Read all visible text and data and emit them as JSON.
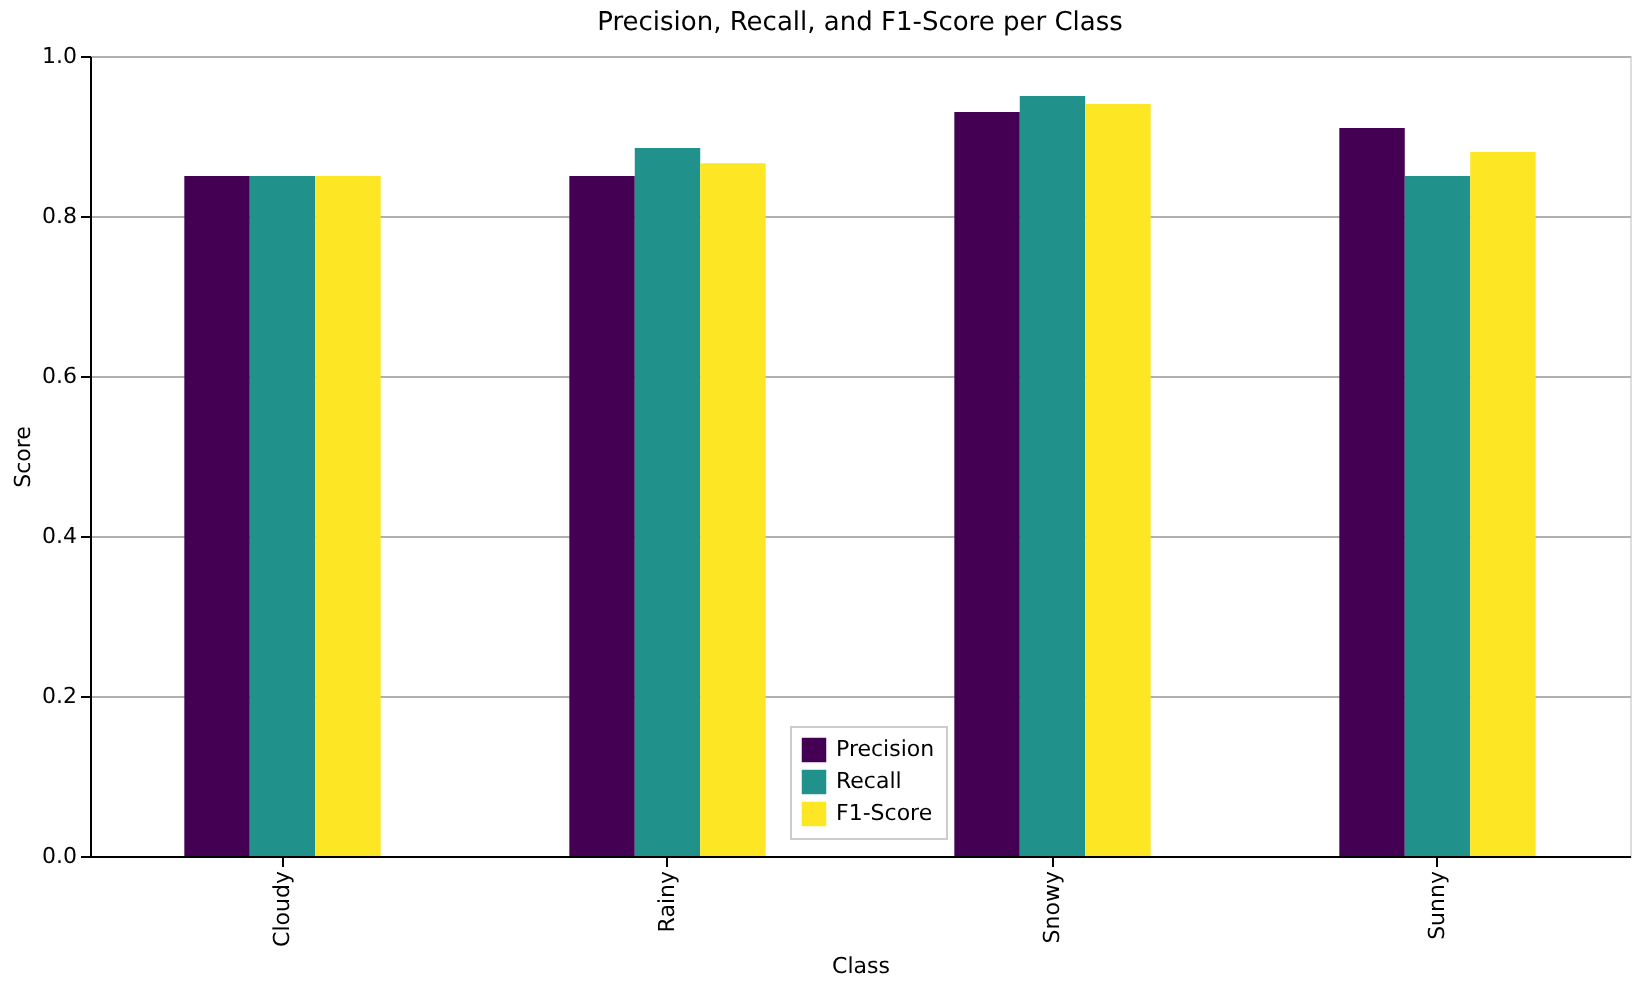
{
  "chart_data": {
    "type": "bar",
    "title": "Precision, Recall, and F1-Score per Class",
    "xlabel": "Class",
    "ylabel": "Score",
    "categories": [
      "Cloudy",
      "Rainy",
      "Snowy",
      "Sunny"
    ],
    "series": [
      {
        "name": "Precision",
        "color": "#440154",
        "values": [
          0.85,
          0.85,
          0.93,
          0.91
        ]
      },
      {
        "name": "Recall",
        "color": "#21918c",
        "values": [
          0.85,
          0.885,
          0.95,
          0.85
        ]
      },
      {
        "name": "F1-Score",
        "color": "#fde725",
        "values": [
          0.85,
          0.866,
          0.94,
          0.88
        ]
      }
    ],
    "ylim": [
      0,
      1
    ],
    "yticks": [
      {
        "value": 0,
        "label": "0.0"
      },
      {
        "value": 0.2,
        "label": "0.2"
      },
      {
        "value": 0.4,
        "label": "0.4"
      },
      {
        "value": 0.6,
        "label": "0.6"
      },
      {
        "value": 0.8,
        "label": "0.8"
      },
      {
        "value": 1,
        "label": "1.0"
      }
    ],
    "grid": "y",
    "legend": "bottom"
  }
}
